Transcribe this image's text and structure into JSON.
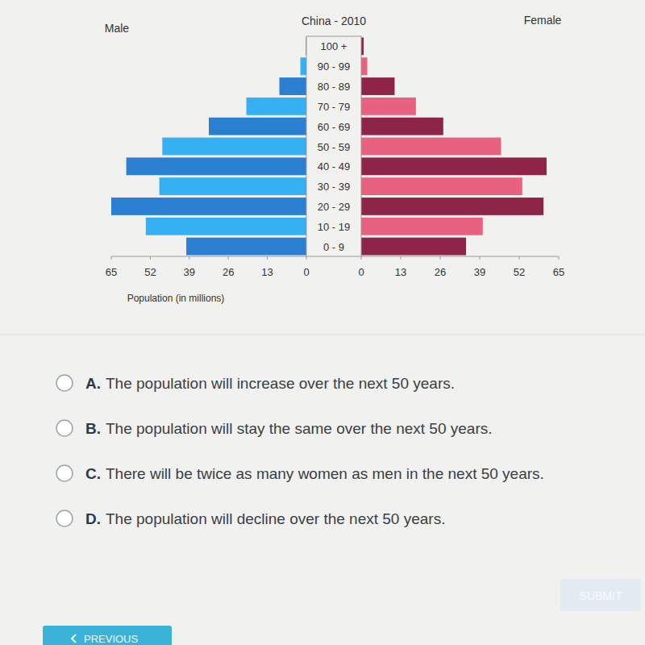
{
  "chart_data": {
    "type": "bar",
    "orientation": "horizontal",
    "title": "China - 2010",
    "x_label": "Population (in millions)",
    "categories": [
      "100 +",
      "90 - 99",
      "80 - 89",
      "70 - 79",
      "60 - 69",
      "50 - 59",
      "40 - 49",
      "30 - 39",
      "20 - 29",
      "10 - 19",
      "0 - 9"
    ],
    "series": [
      {
        "name": "Male",
        "values": [
          0.2,
          2,
          9,
          20,
          32.5,
          48,
          60,
          49,
          65,
          53.5,
          40
        ],
        "colors": [
          "#2b7fd0",
          "#35b0f2",
          "#2b7fd0",
          "#35b0f2",
          "#2b7fd0",
          "#35b0f2",
          "#2b7fd0",
          "#35b0f2",
          "#2b7fd0",
          "#35b0f2",
          "#2b7fd0"
        ]
      },
      {
        "name": "Female",
        "values": [
          0.8,
          2,
          11,
          18,
          27,
          46,
          61,
          53,
          60,
          40,
          34.5
        ],
        "colors": [
          "#8e2549",
          "#e8617e",
          "#8e2549",
          "#e8617e",
          "#8e2549",
          "#e8617e",
          "#8e2549",
          "#e8617e",
          "#8e2549",
          "#e8617e",
          "#8e2549"
        ]
      }
    ],
    "xlim": [
      0,
      65
    ],
    "xticks": [
      0,
      13,
      26,
      39,
      52,
      65
    ]
  },
  "quiz": {
    "options": [
      {
        "letter": "A.",
        "text": "The population will increase over the next 50 years."
      },
      {
        "letter": "B.",
        "text": "The population will stay the same over the next 50 years."
      },
      {
        "letter": "C.",
        "text": "There will be twice as many women as men in the next 50 years."
      },
      {
        "letter": "D.",
        "text": "The population will decline over the next 50 years."
      }
    ],
    "submit": "SUBMIT",
    "previous": "PREVIOUS"
  }
}
